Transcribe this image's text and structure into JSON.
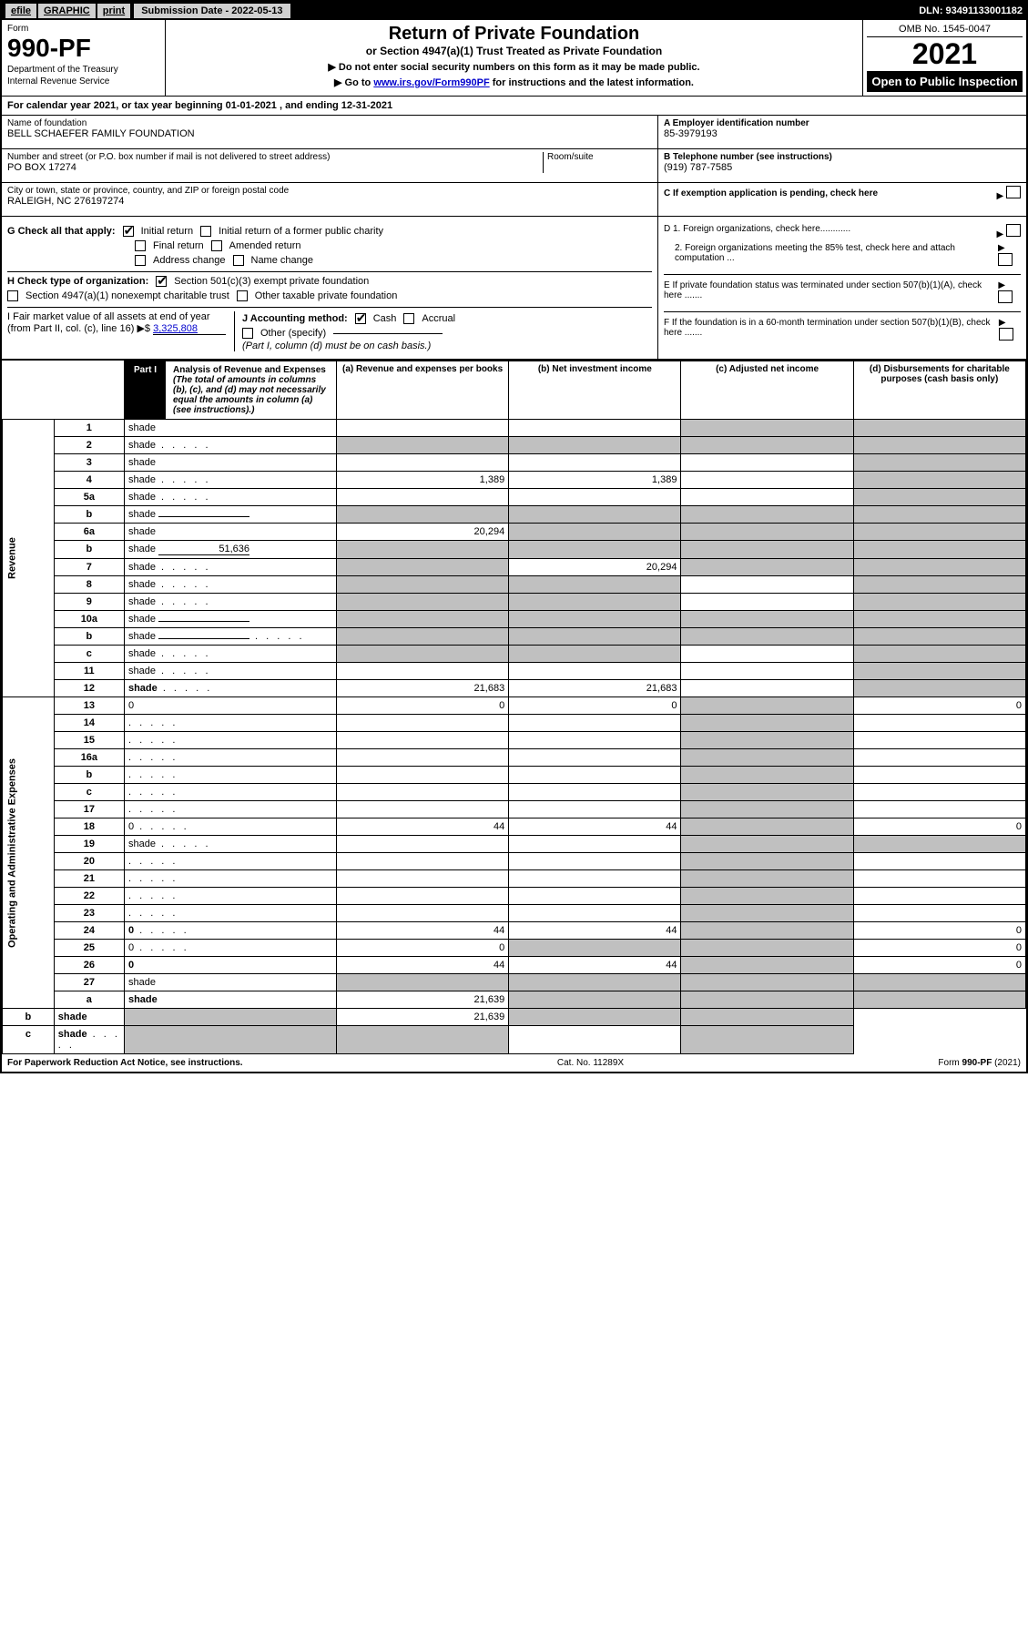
{
  "header": {
    "efile": "efile",
    "graphic": "GRAPHIC",
    "print": "print",
    "submission_label": "Submission Date - 2022-05-13",
    "dln": "DLN: 93491133001182"
  },
  "top": {
    "form_label": "Form",
    "form_num": "990-PF",
    "dept1": "Department of the Treasury",
    "dept2": "Internal Revenue Service",
    "title": "Return of Private Foundation",
    "sub1": "or Section 4947(a)(1) Trust Treated as Private Foundation",
    "sub2a": "▶ Do not enter social security numbers on this form as it may be made public.",
    "sub2b": "▶ Go to ",
    "sub2b_link": "www.irs.gov/Form990PF",
    "sub2b_tail": " for instructions and the latest information.",
    "omb": "OMB No. 1545-0047",
    "year": "2021",
    "open": "Open to Public Inspection"
  },
  "cal_year": "For calendar year 2021, or tax year beginning 01-01-2021                         , and ending 12-31-2021",
  "id": {
    "name_label": "Name of foundation",
    "name": "BELL SCHAEFER FAMILY FOUNDATION",
    "addr_label": "Number and street (or P.O. box number if mail is not delivered to street address)",
    "addr": "PO BOX 17274",
    "room_label": "Room/suite",
    "city_label": "City or town, state or province, country, and ZIP or foreign postal code",
    "city": "RALEIGH, NC  276197274",
    "a_label": "A Employer identification number",
    "a_val": "85-3979193",
    "b_label": "B Telephone number (see instructions)",
    "b_val": "(919) 787-7585",
    "c_label": "C If exemption application is pending, check here"
  },
  "g": {
    "label": "G Check all that apply:",
    "initial": "Initial return",
    "initial_former": "Initial return of a former public charity",
    "final": "Final return",
    "amended": "Amended return",
    "addr_change": "Address change",
    "name_change": "Name change"
  },
  "h": {
    "label": "H Check type of organization:",
    "501c3": "Section 501(c)(3) exempt private foundation",
    "4947": "Section 4947(a)(1) nonexempt charitable trust",
    "other": "Other taxable private foundation"
  },
  "i": {
    "label": "I Fair market value of all assets at end of year (from Part II, col. (c), line 16)",
    "arrow": "▶$",
    "val": "3,325,808"
  },
  "j": {
    "label": "J Accounting method:",
    "cash": "Cash",
    "accrual": "Accrual",
    "other": "Other (specify)",
    "note": "(Part I, column (d) must be on cash basis.)"
  },
  "d": {
    "d1": "D 1. Foreign organizations, check here............",
    "d2": "2. Foreign organizations meeting the 85% test, check here and attach computation ...",
    "e": "E  If private foundation status was terminated under section 507(b)(1)(A), check here .......",
    "f": "F  If the foundation is in a 60-month termination under section 507(b)(1)(B), check here ......."
  },
  "part1": {
    "label": "Part I",
    "title": "Analysis of Revenue and Expenses",
    "note": "(The total of amounts in columns (b), (c), and (d) may not necessarily equal the amounts in column (a) (see instructions).)",
    "col_a": "(a)   Revenue and expenses per books",
    "col_b": "(b)   Net investment income",
    "col_c": "(c)   Adjusted net income",
    "col_d": "(d)   Disbursements for charitable purposes (cash basis only)"
  },
  "side_labels": {
    "revenue": "Revenue",
    "expenses": "Operating and Administrative Expenses"
  },
  "rows": [
    {
      "n": "1",
      "d": "shade",
      "a": "",
      "b": "",
      "c": "shade"
    },
    {
      "n": "2",
      "d": "shade",
      "a": "shade",
      "b": "shade",
      "c": "shade",
      "dots": true
    },
    {
      "n": "3",
      "d": "shade",
      "a": "",
      "b": "",
      "c": ""
    },
    {
      "n": "4",
      "d": "shade",
      "a": "1,389",
      "b": "1,389",
      "c": "",
      "dots": true
    },
    {
      "n": "5a",
      "d": "shade",
      "a": "",
      "b": "",
      "c": "",
      "dots": true
    },
    {
      "n": "b",
      "d": "shade",
      "a": "shade",
      "b": "shade",
      "c": "shade",
      "inline": ""
    },
    {
      "n": "6a",
      "d": "shade",
      "a": "20,294",
      "b": "shade",
      "c": "shade"
    },
    {
      "n": "b",
      "d": "shade",
      "a": "shade",
      "b": "shade",
      "c": "shade",
      "inline": "51,636"
    },
    {
      "n": "7",
      "d": "shade",
      "a": "shade",
      "b": "20,294",
      "c": "shade",
      "dots": true
    },
    {
      "n": "8",
      "d": "shade",
      "a": "shade",
      "b": "shade",
      "c": "",
      "dots": true
    },
    {
      "n": "9",
      "d": "shade",
      "a": "shade",
      "b": "shade",
      "c": "",
      "dots": true
    },
    {
      "n": "10a",
      "d": "shade",
      "a": "shade",
      "b": "shade",
      "c": "shade",
      "inline": ""
    },
    {
      "n": "b",
      "d": "shade",
      "a": "shade",
      "b": "shade",
      "c": "shade",
      "inline": "",
      "dots": true
    },
    {
      "n": "c",
      "d": "shade",
      "a": "shade",
      "b": "shade",
      "c": "",
      "dots": true
    },
    {
      "n": "11",
      "d": "shade",
      "a": "",
      "b": "",
      "c": "",
      "dots": true
    },
    {
      "n": "12",
      "d": "shade",
      "a": "21,683",
      "b": "21,683",
      "c": "",
      "bold": true,
      "dots": true
    },
    {
      "n": "13",
      "d": "0",
      "a": "0",
      "b": "0",
      "c": "shade"
    },
    {
      "n": "14",
      "d": "",
      "a": "",
      "b": "",
      "c": "shade",
      "dots": true
    },
    {
      "n": "15",
      "d": "",
      "a": "",
      "b": "",
      "c": "shade",
      "dots": true
    },
    {
      "n": "16a",
      "d": "",
      "a": "",
      "b": "",
      "c": "shade",
      "dots": true
    },
    {
      "n": "b",
      "d": "",
      "a": "",
      "b": "",
      "c": "shade",
      "dots": true
    },
    {
      "n": "c",
      "d": "",
      "a": "",
      "b": "",
      "c": "shade",
      "dots": true
    },
    {
      "n": "17",
      "d": "",
      "a": "",
      "b": "",
      "c": "shade",
      "dots": true
    },
    {
      "n": "18",
      "d": "0",
      "a": "44",
      "b": "44",
      "c": "shade",
      "dots": true
    },
    {
      "n": "19",
      "d": "shade",
      "a": "",
      "b": "",
      "c": "shade",
      "dots": true
    },
    {
      "n": "20",
      "d": "",
      "a": "",
      "b": "",
      "c": "shade",
      "dots": true
    },
    {
      "n": "21",
      "d": "",
      "a": "",
      "b": "",
      "c": "shade",
      "dots": true
    },
    {
      "n": "22",
      "d": "",
      "a": "",
      "b": "",
      "c": "shade",
      "dots": true
    },
    {
      "n": "23",
      "d": "",
      "a": "",
      "b": "",
      "c": "shade",
      "dots": true
    },
    {
      "n": "24",
      "d": "0",
      "a": "44",
      "b": "44",
      "c": "shade",
      "bold": true,
      "dots": true
    },
    {
      "n": "25",
      "d": "0",
      "a": "0",
      "b": "shade",
      "c": "shade",
      "dots": true
    },
    {
      "n": "26",
      "d": "0",
      "a": "44",
      "b": "44",
      "c": "shade",
      "bold": true
    },
    {
      "n": "27",
      "d": "shade",
      "a": "shade",
      "b": "shade",
      "c": "shade"
    },
    {
      "n": "a",
      "d": "shade",
      "a": "21,639",
      "b": "shade",
      "c": "shade",
      "bold": true
    },
    {
      "n": "b",
      "d": "shade",
      "a": "shade",
      "b": "21,639",
      "c": "shade",
      "bold": true
    },
    {
      "n": "c",
      "d": "shade",
      "a": "shade",
      "b": "shade",
      "c": "",
      "bold": true,
      "dots": true
    }
  ],
  "footer": {
    "left": "For Paperwork Reduction Act Notice, see instructions.",
    "mid": "Cat. No. 11289X",
    "right": "Form 990-PF (2021)"
  }
}
